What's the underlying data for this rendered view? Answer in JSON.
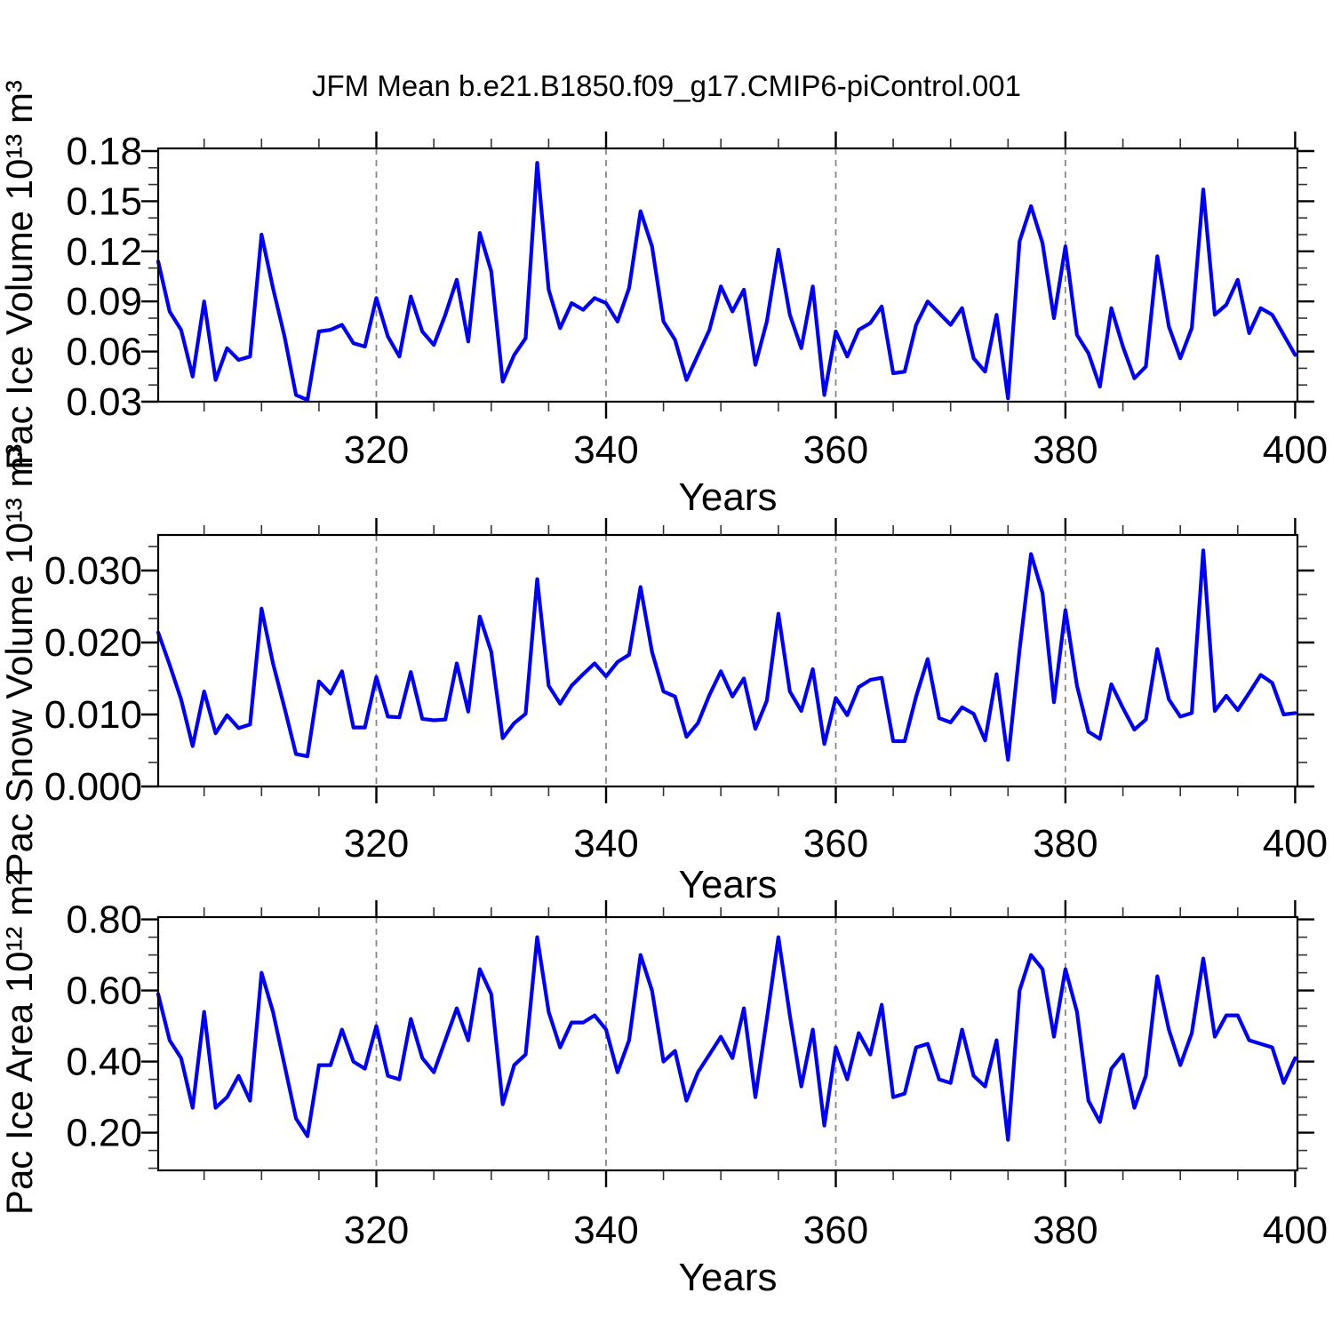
{
  "header": {
    "title": "JFM Mean b.e21.B1850.f09_g17.CMIP6-piControl.001"
  },
  "chart_data": [
    {
      "type": "line",
      "panel": "pac-ice-volume",
      "ylabel": "Pac Ice Volume 10¹³ m³",
      "xlabel": "Years",
      "line_color": "#0000ee",
      "legend": "none",
      "grid": "vertical-dashed",
      "x_range": [
        301,
        400
      ],
      "x_step": 1,
      "xlim": [
        301,
        400.2
      ],
      "ylim": [
        0.03,
        0.1816
      ],
      "x_major_ticks": [
        320,
        340,
        360,
        380,
        400
      ],
      "x_tick_labels": [
        "320",
        "340",
        "360",
        "380",
        "400"
      ],
      "x_minor_step": 5,
      "y_major_ticks": [
        0.03,
        0.06,
        0.09,
        0.12,
        0.15,
        0.18
      ],
      "y_tick_labels": [
        "0.03",
        "0.06",
        "0.09",
        "0.12",
        "0.15",
        "0.18"
      ],
      "y_minor_step": 0.01,
      "gridline_x": [
        320,
        340,
        360,
        380
      ],
      "values": [
        0.114,
        0.084,
        0.073,
        0.045,
        0.09,
        0.043,
        0.062,
        0.055,
        0.057,
        0.13,
        0.098,
        0.069,
        0.034,
        0.031,
        0.072,
        0.073,
        0.076,
        0.065,
        0.063,
        0.092,
        0.069,
        0.057,
        0.093,
        0.072,
        0.064,
        0.082,
        0.103,
        0.066,
        0.131,
        0.108,
        0.042,
        0.058,
        0.068,
        0.173,
        0.097,
        0.074,
        0.089,
        0.085,
        0.092,
        0.089,
        0.078,
        0.098,
        0.144,
        0.123,
        0.078,
        0.067,
        0.043,
        0.058,
        0.073,
        0.099,
        0.084,
        0.097,
        0.052,
        0.078,
        0.121,
        0.082,
        0.062,
        0.099,
        0.034,
        0.072,
        0.057,
        0.073,
        0.077,
        0.087,
        0.047,
        0.048,
        0.076,
        0.09,
        0.083,
        0.076,
        0.086,
        0.056,
        0.048,
        0.082,
        0.032,
        0.126,
        0.147,
        0.125,
        0.08,
        0.123,
        0.07,
        0.059,
        0.039,
        0.086,
        0.063,
        0.044,
        0.051,
        0.117,
        0.075,
        0.056,
        0.074,
        0.157,
        0.082,
        0.088,
        0.103,
        0.071,
        0.086,
        0.082,
        0.07,
        0.058
      ]
    },
    {
      "type": "line",
      "panel": "pac-snow-volume",
      "ylabel": "Pac Snow Volume 10¹³ m³",
      "xlabel": "Years",
      "line_color": "#0000ee",
      "legend": "none",
      "grid": "vertical-dashed",
      "x_range": [
        301,
        400
      ],
      "x_step": 1,
      "xlim": [
        301,
        400.2
      ],
      "ylim": [
        0.0,
        0.03494
      ],
      "x_major_ticks": [
        320,
        340,
        360,
        380,
        400
      ],
      "x_tick_labels": [
        "320",
        "340",
        "360",
        "380",
        "400"
      ],
      "x_minor_step": 5,
      "y_major_ticks": [
        0.0,
        0.01,
        0.02,
        0.03
      ],
      "y_tick_labels": [
        "0.000",
        "0.010",
        "0.020",
        "0.030"
      ],
      "y_minor_step": 0.003333,
      "gridline_x": [
        320,
        340,
        360,
        380
      ],
      "values": [
        0.0214,
        0.0169,
        0.0121,
        0.0056,
        0.0132,
        0.0074,
        0.0099,
        0.0081,
        0.0086,
        0.0247,
        0.0171,
        0.0109,
        0.0045,
        0.0042,
        0.0146,
        0.0129,
        0.016,
        0.0082,
        0.0082,
        0.0152,
        0.0097,
        0.0096,
        0.0159,
        0.0094,
        0.0092,
        0.0093,
        0.0171,
        0.0104,
        0.0236,
        0.0187,
        0.0067,
        0.0088,
        0.0101,
        0.0288,
        0.014,
        0.0115,
        0.014,
        0.0156,
        0.0171,
        0.0153,
        0.0173,
        0.0183,
        0.0277,
        0.0187,
        0.0132,
        0.0125,
        0.0069,
        0.0088,
        0.0127,
        0.016,
        0.0125,
        0.015,
        0.008,
        0.0119,
        0.024,
        0.0132,
        0.0105,
        0.0163,
        0.0059,
        0.0123,
        0.0099,
        0.0138,
        0.0148,
        0.0151,
        0.0063,
        0.0063,
        0.0125,
        0.0177,
        0.0095,
        0.0089,
        0.011,
        0.0101,
        0.0064,
        0.0156,
        0.0037,
        0.019,
        0.0323,
        0.0269,
        0.0117,
        0.0245,
        0.014,
        0.0076,
        0.0066,
        0.0142,
        0.0109,
        0.0079,
        0.0093,
        0.0191,
        0.0121,
        0.0097,
        0.0102,
        0.0328,
        0.0105,
        0.0126,
        0.0106,
        0.013,
        0.0155,
        0.0144,
        0.01,
        0.0102
      ]
    },
    {
      "type": "line",
      "panel": "pac-ice-area",
      "ylabel": "Pac Ice Area 10¹² m²",
      "xlabel": "Years",
      "line_color": "#0000ee",
      "legend": "none",
      "grid": "vertical-dashed",
      "x_range": [
        301,
        400
      ],
      "x_step": 1,
      "xlim": [
        301,
        400.2
      ],
      "ylim": [
        0.094,
        0.8065
      ],
      "x_major_ticks": [
        320,
        340,
        360,
        380,
        400
      ],
      "x_tick_labels": [
        "320",
        "340",
        "360",
        "380",
        "400"
      ],
      "x_minor_step": 5,
      "y_major_ticks": [
        0.2,
        0.4,
        0.6,
        0.8
      ],
      "y_tick_labels": [
        "0.20",
        "0.40",
        "0.60",
        "0.80"
      ],
      "y_minor_step": 0.05,
      "gridline_x": [
        320,
        340,
        360,
        380
      ],
      "values": [
        0.59,
        0.46,
        0.41,
        0.27,
        0.54,
        0.27,
        0.3,
        0.36,
        0.29,
        0.65,
        0.54,
        0.39,
        0.24,
        0.19,
        0.39,
        0.39,
        0.49,
        0.4,
        0.38,
        0.5,
        0.36,
        0.35,
        0.52,
        0.41,
        0.37,
        0.46,
        0.55,
        0.46,
        0.66,
        0.59,
        0.28,
        0.39,
        0.42,
        0.75,
        0.54,
        0.44,
        0.51,
        0.51,
        0.53,
        0.49,
        0.37,
        0.46,
        0.7,
        0.6,
        0.4,
        0.43,
        0.29,
        0.37,
        0.42,
        0.47,
        0.41,
        0.55,
        0.3,
        0.52,
        0.75,
        0.53,
        0.33,
        0.49,
        0.22,
        0.44,
        0.35,
        0.48,
        0.42,
        0.56,
        0.3,
        0.31,
        0.44,
        0.45,
        0.35,
        0.34,
        0.49,
        0.36,
        0.33,
        0.46,
        0.18,
        0.6,
        0.7,
        0.66,
        0.47,
        0.66,
        0.54,
        0.29,
        0.23,
        0.38,
        0.42,
        0.27,
        0.36,
        0.64,
        0.49,
        0.39,
        0.48,
        0.69,
        0.47,
        0.53,
        0.53,
        0.46,
        0.45,
        0.44,
        0.34,
        0.41
      ]
    }
  ]
}
